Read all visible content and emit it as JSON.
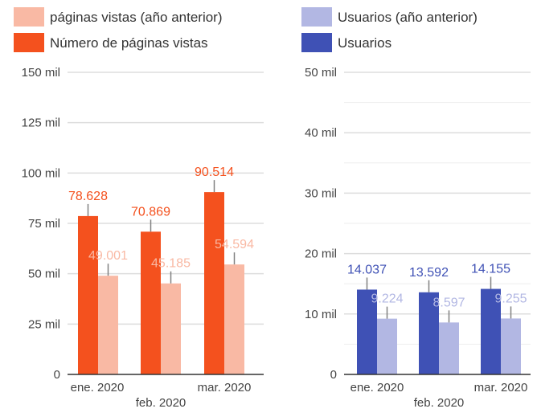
{
  "colors": {
    "pv_prev": "#f9b9a4",
    "pv_curr": "#f4511e",
    "us_prev": "#b2b7e3",
    "us_curr": "#3f51b5",
    "grid": "#dddddd",
    "axis": "#333333",
    "tick_text": "#444444",
    "error": "#808080"
  },
  "chart_data": [
    {
      "type": "bar",
      "title": "",
      "xlabel": "",
      "ylabel": "",
      "ylim": [
        0,
        150000
      ],
      "grid": true,
      "legend": "top-left",
      "categories": [
        "ene. 2020",
        "feb. 2020",
        "mar. 2020"
      ],
      "yticks": [
        0,
        25000,
        50000,
        75000,
        100000,
        125000,
        150000
      ],
      "ytick_labels": [
        "0",
        "25 mil",
        "50 mil",
        "75 mil",
        "100 mil",
        "125 mil",
        "150 mil"
      ],
      "series": [
        {
          "name": "Número de páginas vistas",
          "color_key": "pv_curr",
          "values": [
            78628,
            70869,
            90514
          ],
          "labels": [
            "78.628",
            "70.869",
            "90.514"
          ]
        },
        {
          "name": "páginas vistas (año anterior)",
          "color_key": "pv_prev",
          "values": [
            49001,
            45185,
            54594
          ],
          "labels": [
            "49.001",
            "45.185",
            "54.594"
          ]
        }
      ],
      "legend_order": [
        1,
        0
      ]
    },
    {
      "type": "bar",
      "title": "",
      "xlabel": "",
      "ylabel": "",
      "ylim": [
        0,
        50000
      ],
      "grid": true,
      "legend": "top-left",
      "categories": [
        "ene. 2020",
        "feb. 2020",
        "mar. 2020"
      ],
      "yticks": [
        0,
        10000,
        20000,
        30000,
        40000,
        50000
      ],
      "ytick_labels": [
        "0",
        "10 mil",
        "20 mil",
        "30 mil",
        "40 mil",
        "50 mil"
      ],
      "series": [
        {
          "name": "Usuarios",
          "color_key": "us_curr",
          "values": [
            14037,
            13592,
            14155
          ],
          "labels": [
            "14.037",
            "13.592",
            "14.155"
          ]
        },
        {
          "name": "Usuarios (año anterior)",
          "color_key": "us_prev",
          "values": [
            9224,
            8597,
            9255
          ],
          "labels": [
            "9.224",
            "8.597",
            "9.255"
          ]
        }
      ],
      "legend_order": [
        1,
        0
      ]
    }
  ]
}
